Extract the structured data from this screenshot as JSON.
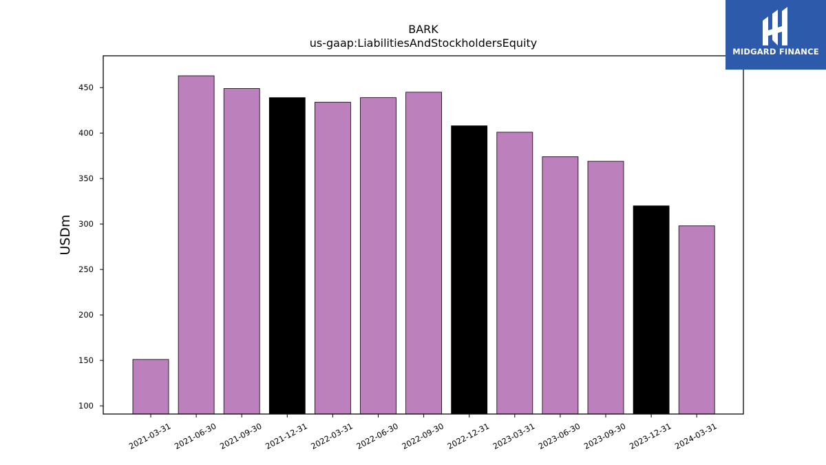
{
  "brand": {
    "name": "MIDGARD FINANCE",
    "color": "#2d5aab"
  },
  "chart_data": {
    "type": "bar",
    "title": "BARK",
    "subtitle": "us-gaap:LiabilitiesAndStockholdersEquity",
    "xlabel": "",
    "ylabel": "USDm",
    "ylim": [
      91,
      485
    ],
    "yticks": [
      100,
      150,
      200,
      250,
      300,
      350,
      400,
      450
    ],
    "grid": false,
    "categories": [
      "2021-03-31",
      "2021-06-30",
      "2021-09-30",
      "2021-12-31",
      "2022-03-31",
      "2022-06-30",
      "2022-09-30",
      "2022-12-31",
      "2023-03-31",
      "2023-06-30",
      "2023-09-30",
      "2023-12-31",
      "2024-03-31"
    ],
    "values": [
      151,
      463,
      449,
      439,
      434,
      439,
      445,
      408,
      401,
      374,
      369,
      320,
      298
    ],
    "bar_colors": [
      "#bc80bd",
      "#bc80bd",
      "#bc80bd",
      "#000000",
      "#bc80bd",
      "#bc80bd",
      "#bc80bd",
      "#000000",
      "#bc80bd",
      "#bc80bd",
      "#bc80bd",
      "#000000",
      "#bc80bd"
    ]
  }
}
